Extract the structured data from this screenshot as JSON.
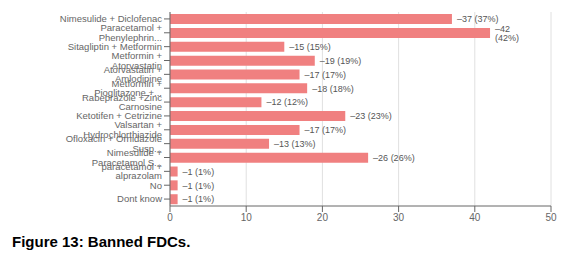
{
  "chart_data": {
    "type": "bar",
    "title": "Figure 13: Banned FDCs.",
    "orientation": "horizontal",
    "categories": [
      "Nimesulide + Diclofenac",
      "Paracetamol + Phenylephrin...",
      "Sitagliptin + Metformin",
      "Metformin + Atorvastatin",
      "Atorvastatin + Amlodipine",
      "Metformin + Pioglitazone +...",
      "Rabeprazole +Zinc Carnosine",
      "Ketotifen + Cetrizine",
      "Valsartan + Hydrochlorthiazide",
      "Ofloxacin + Ornidazole Susp...",
      "Nimesulide + Paracetamol S...",
      "paracetamol + alprazolam",
      "No",
      "Dont know"
    ],
    "values": [
      37,
      42,
      15,
      19,
      17,
      18,
      12,
      23,
      17,
      13,
      26,
      1,
      1,
      1
    ],
    "value_labels": [
      "–37 (37%)",
      "–42 (42%)",
      "–15 (15%)",
      "–19 (19%)",
      "–17 (17%)",
      "–18 (18%)",
      "–12 (12%)",
      "–23 (23%)",
      "–17 (17%)",
      "–13 (13%)",
      "–26 (26%)",
      "–1 (1%)",
      "–1 (1%)",
      "–1 (1%)"
    ],
    "data_labels": true,
    "color": "#f08080",
    "xlim": [
      0,
      50
    ],
    "xticks": [
      0,
      10,
      20,
      30,
      40,
      50
    ],
    "grid": true
  }
}
